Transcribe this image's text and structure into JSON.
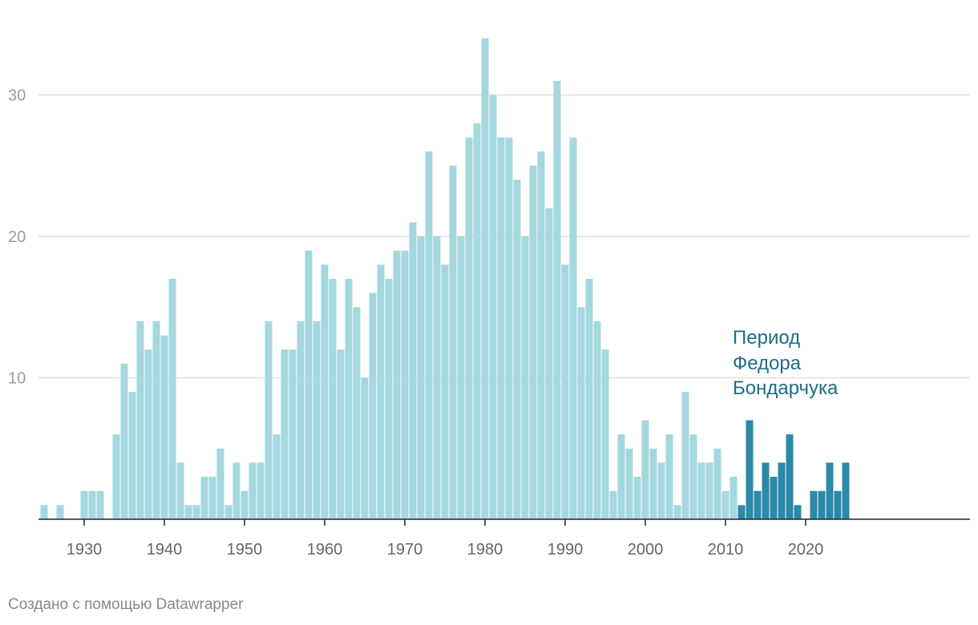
{
  "chart_data": {
    "type": "bar",
    "x_start_year": 1925,
    "values": [
      1,
      0,
      1,
      0,
      0,
      2,
      2,
      2,
      0,
      6,
      11,
      9,
      14,
      12,
      14,
      13,
      17,
      4,
      1,
      1,
      3,
      3,
      5,
      1,
      4,
      2,
      4,
      4,
      14,
      6,
      12,
      12,
      14,
      19,
      14,
      18,
      17,
      12,
      17,
      15,
      10,
      16,
      18,
      17,
      19,
      19,
      21,
      20,
      26,
      20,
      18,
      25,
      20,
      27,
      28,
      34,
      30,
      27,
      27,
      24,
      20,
      25,
      26,
      22,
      31,
      18,
      27,
      15,
      17,
      14,
      12,
      2,
      6,
      5,
      3,
      7,
      5,
      4,
      6,
      1,
      9,
      6,
      4,
      4,
      5,
      2,
      3,
      1,
      7,
      2,
      4,
      3,
      4,
      6,
      1,
      0,
      2,
      2,
      4,
      2,
      4
    ],
    "highlight_range": [
      2012,
      2025
    ],
    "colors": {
      "base": "#a5d7de",
      "highlight": "#2a8aa8",
      "annotation": "#1b6d8a",
      "grid": "#e0e0e0",
      "axis": "#222222"
    },
    "y_ticks": [
      10,
      20,
      30
    ],
    "ylim": [
      0,
      34
    ],
    "x_ticks": [
      1930,
      1940,
      1950,
      1960,
      1970,
      1980,
      1990,
      2000,
      2010,
      2020
    ],
    "xlim": [
      1925,
      2040
    ],
    "annotation": [
      "Период",
      "Федора",
      "Бондарчука"
    ],
    "title": "",
    "xlabel": "",
    "ylabel": ""
  },
  "credit": "Создано с помощью Datawrapper"
}
